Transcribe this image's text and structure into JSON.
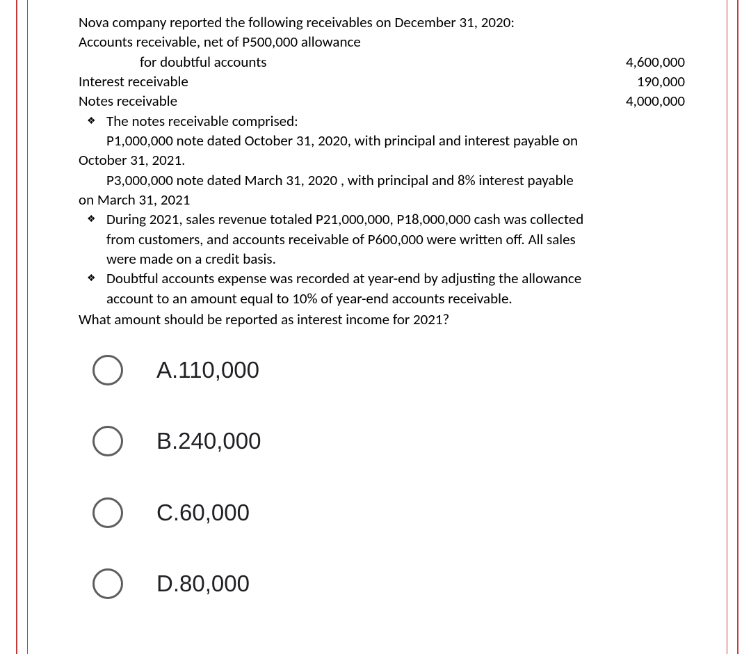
{
  "question": {
    "intro_line1": "Nova company reported the following receivables on December 31, 2020:",
    "intro_line2": "Accounts receivable, net of P500,000 allowance",
    "row1_label": "for doubtful accounts",
    "row1_amount": "4,600,000",
    "row2_label": "Interest receivable",
    "row2_amount": "190,000",
    "row3_label": "Notes receivable",
    "row3_amount": "4,000,000",
    "bullet1": "The notes receivable comprised:",
    "bullet1_sub1a": "P1,000,000 note dated October 31, 2020, with principal and interest payable on",
    "bullet1_sub1b": "October 31, 2021.",
    "bullet1_sub2a": "P3,000,000 note dated March 31, 2020 , with principal and 8% interest payable",
    "bullet1_sub2b": "on March 31, 2021",
    "bullet2a": "During 2021, sales revenue totaled P21,000,000, P18,000,000 cash was collected",
    "bullet2b": "from customers, and accounts receivable of P600,000 were written off. All sales",
    "bullet2c": "were made on a credit basis.",
    "bullet3a": "Doubtful accounts expense was recorded at year-end by adjusting the allowance",
    "bullet3b": "account to an amount equal to 10% of year-end accounts receivable.",
    "final_question": "What amount should be reported as interest income for 2021?"
  },
  "options": {
    "a": "A.110,000",
    "b": "B.240,000",
    "c": "C.60,000",
    "d": "D.80,000"
  },
  "colors": {
    "border": "#c43b3b",
    "text": "#000000",
    "radio_border": "#5e5e5e",
    "option_text": "#202124",
    "background": "#ffffff"
  }
}
